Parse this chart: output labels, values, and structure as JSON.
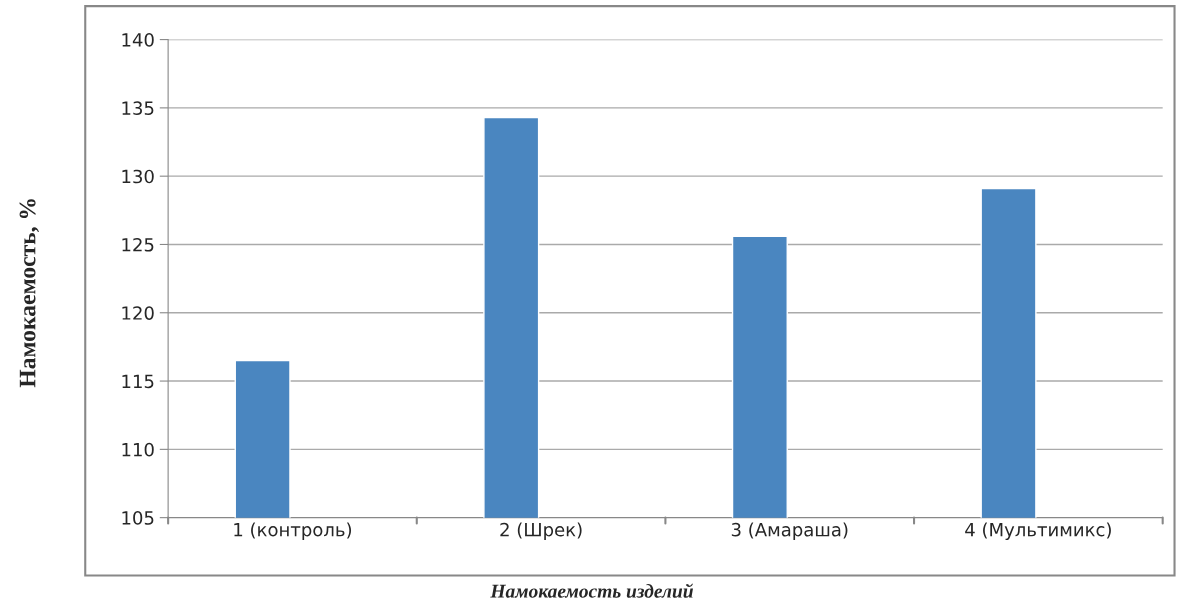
{
  "chart_data": {
    "type": "bar",
    "categories": [
      "1 (контроль)",
      "2 (Шрек)",
      "3 (Амараша)",
      "4 (Мультимикс)"
    ],
    "values": [
      116.5,
      134.3,
      125.6,
      129.1
    ],
    "color": "#4a86c0",
    "ylim": [
      105,
      140
    ],
    "yticks": [
      105,
      110,
      115,
      120,
      125,
      130,
      135,
      140
    ],
    "grid": "y",
    "ylabel": "Намокаемость, %",
    "xlabel": "Намокаемость изделий"
  }
}
